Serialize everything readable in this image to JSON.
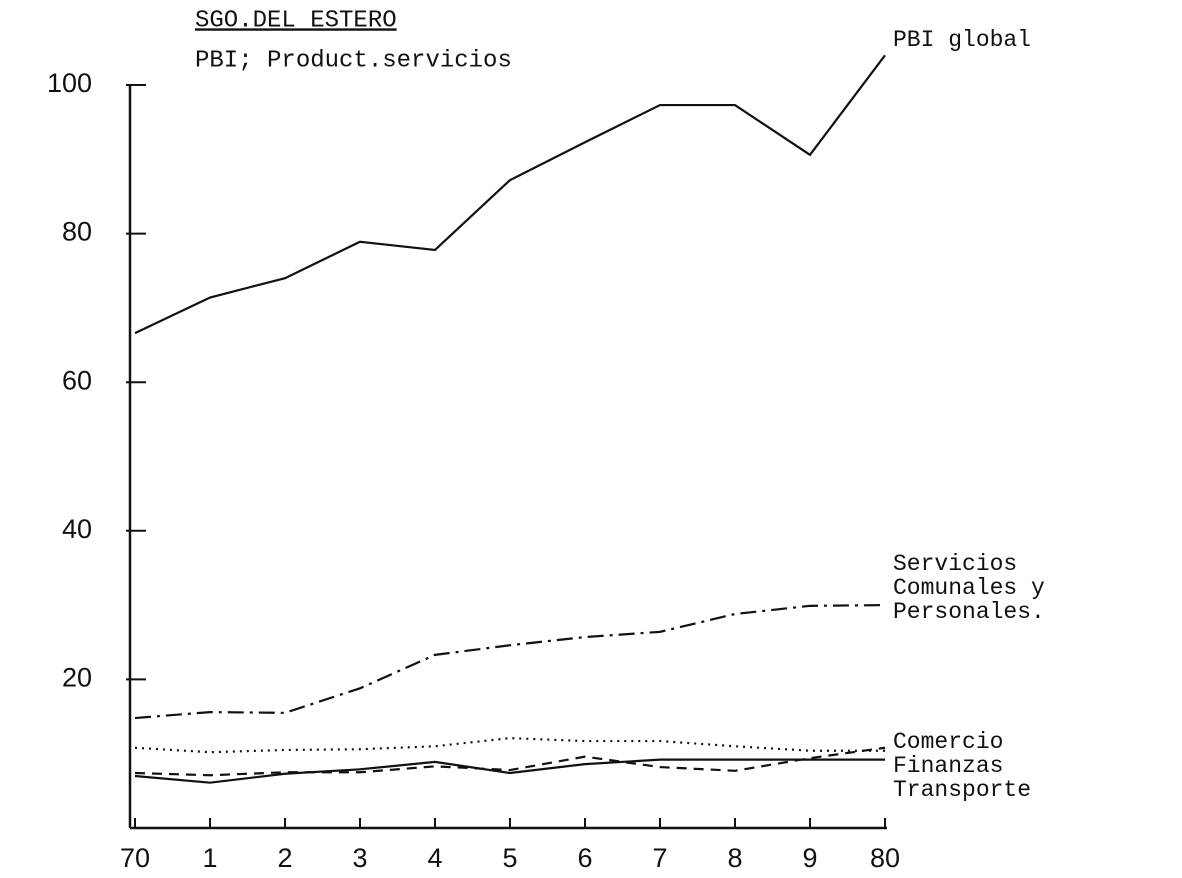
{
  "chart_data": {
    "type": "line",
    "title": "SGO.DEL ESTERO",
    "subtitle": "PBI; Product.servicios",
    "categories": [
      "70",
      "1",
      "2",
      "3",
      "4",
      "5",
      "6",
      "7",
      "8",
      "9",
      "80"
    ],
    "series": [
      {
        "name": "PBI global",
        "color": "#111111",
        "dash": "solid",
        "values": [
          66.6,
          71.4,
          74,
          78.9,
          77.8,
          87.2,
          92.3,
          97.3,
          97.3,
          90.6,
          104
        ]
      },
      {
        "name": "Servicios Comunales y Personales.",
        "color": "#111111",
        "dash": "dashdot",
        "values": [
          14.8,
          15.6,
          15.5,
          18.8,
          23.3,
          24.6,
          25.7,
          26.4,
          28.8,
          29.9,
          30
        ]
      },
      {
        "name": "Comercio",
        "color": "#111111",
        "dash": "dotted",
        "values": [
          10.8,
          10.2,
          10.5,
          10.6,
          11,
          12.1,
          11.7,
          11.7,
          11,
          10.4,
          10.4
        ]
      },
      {
        "name": "Finanzas",
        "color": "#111111",
        "dash": "dashed",
        "values": [
          7.4,
          7.1,
          7.5,
          7.5,
          8.3,
          7.8,
          9.6,
          8.2,
          7.7,
          9.4,
          10.8
        ]
      },
      {
        "name": "Transporte",
        "color": "#111111",
        "dash": "solid",
        "values": [
          7,
          6.1,
          7.3,
          7.9,
          8.9,
          7.4,
          8.6,
          9.2,
          9.2,
          9.2,
          9.2
        ]
      }
    ],
    "ylim": [
      0,
      100
    ],
    "yticks": [
      20,
      40,
      60,
      80,
      100
    ],
    "grid": false
  }
}
